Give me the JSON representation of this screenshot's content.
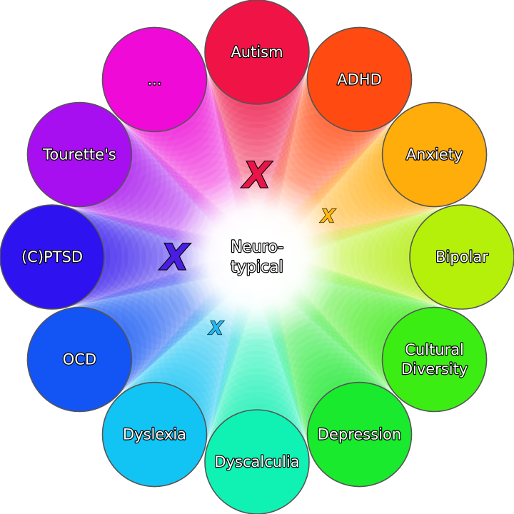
{
  "center": {
    "lines": [
      "Neuro-",
      "typical"
    ]
  },
  "conditions": [
    {
      "lines": [
        "Autism"
      ],
      "color": "#f01446",
      "marked": true,
      "mark_color": "#e8154a"
    },
    {
      "lines": [
        "ADHD"
      ],
      "color": "#ff4a12",
      "marked": false
    },
    {
      "lines": [
        "Anxiety"
      ],
      "color": "#ffad0a",
      "marked": true,
      "mark_color": "#ffb80d"
    },
    {
      "lines": [
        "Bipolar"
      ],
      "color": "#b4f00a",
      "marked": false
    },
    {
      "lines": [
        "Cultural",
        "Diversity"
      ],
      "color": "#3ced14",
      "marked": false
    },
    {
      "lines": [
        "Depression"
      ],
      "color": "#19ea2d",
      "marked": false
    },
    {
      "lines": [
        "Dyscalculia"
      ],
      "color": "#10f2b4",
      "marked": false
    },
    {
      "lines": [
        "Dyslexia"
      ],
      "color": "#12c4f4",
      "marked": true,
      "mark_color": "#25b8f0"
    },
    {
      "lines": [
        "OCD"
      ],
      "color": "#1255f4",
      "marked": false
    },
    {
      "lines": [
        "(C)PTSD"
      ],
      "color": "#2e12ef",
      "marked": true,
      "mark_color": "#4a1ee0"
    },
    {
      "lines": [
        "Tourette's"
      ],
      "color": "#a80ff0",
      "marked": false
    },
    {
      "lines": [
        "..."
      ],
      "color": "#f00ad8",
      "marked": false
    }
  ],
  "mark_symbol": "X"
}
